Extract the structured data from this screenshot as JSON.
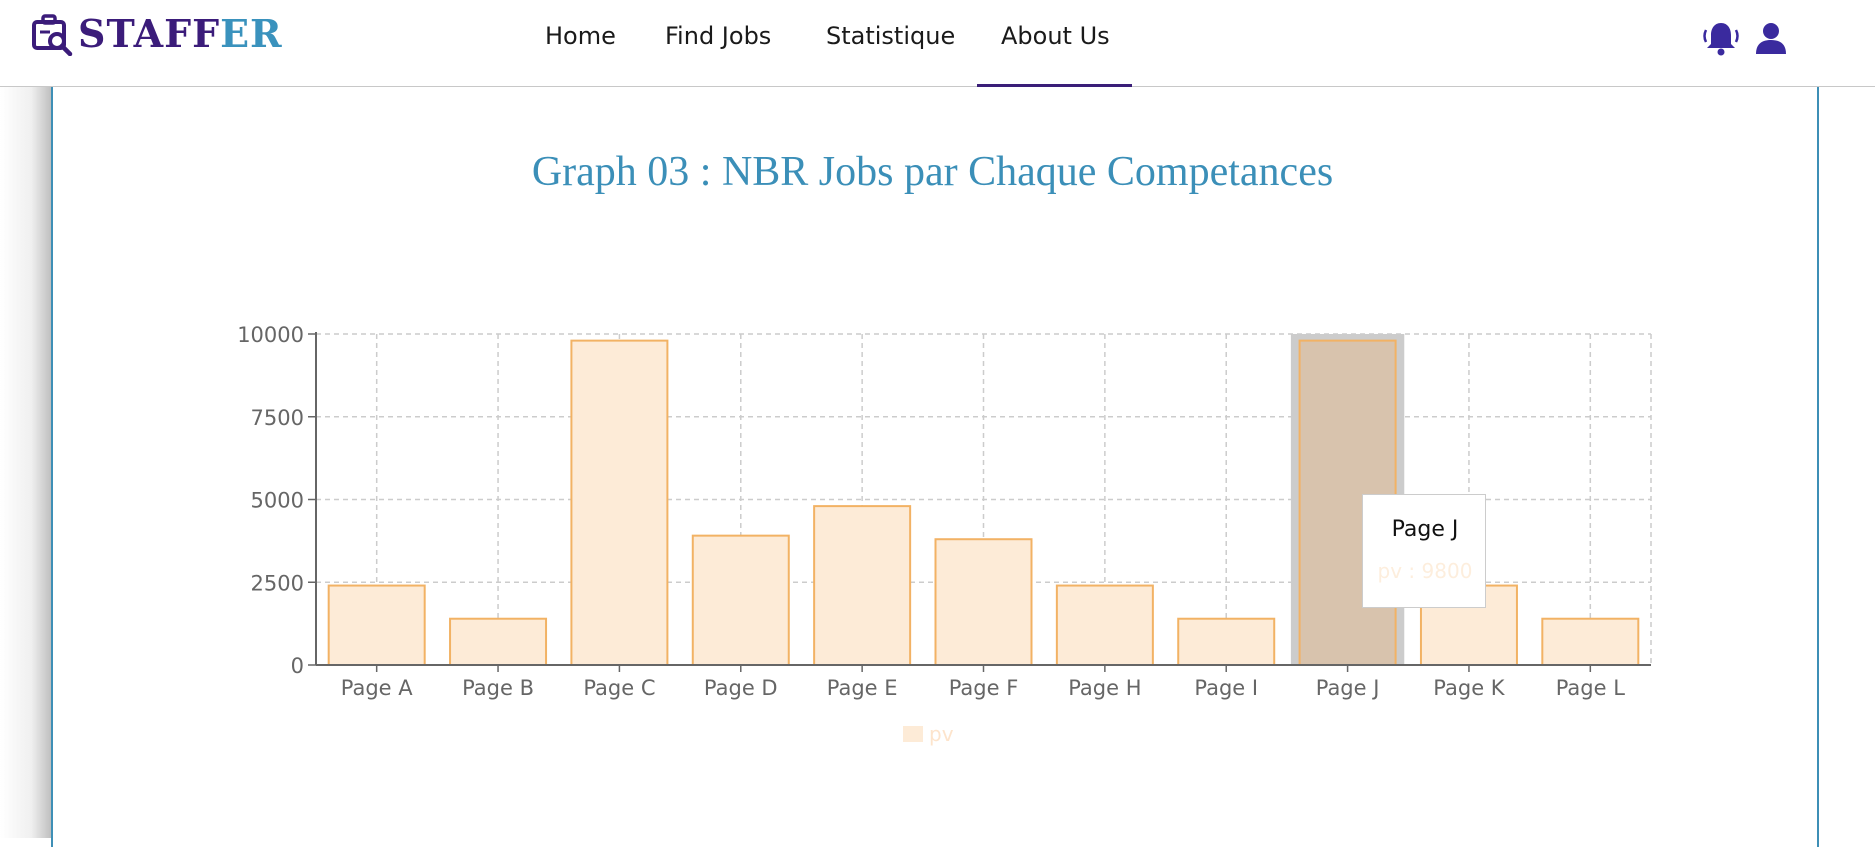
{
  "header": {
    "brand_part1": "STAFF",
    "brand_part2": "ER",
    "nav": [
      "Home",
      "Find Jobs",
      "Statistique",
      "About Us"
    ],
    "active_nav": "About Us",
    "icons": [
      "bell-icon",
      "user-icon"
    ],
    "brand_colors": {
      "primary": "#3b1c7a",
      "secondary": "#3a92bd"
    }
  },
  "graph": {
    "title": "Graph 03 : NBR Jobs par Chaque Competances"
  },
  "tooltip": {
    "label": "Page J",
    "value_text": "pv : 9800"
  },
  "legend": {
    "series_name": "pv"
  },
  "chart_data": {
    "type": "bar",
    "title": "Graph 03 : NBR Jobs par Chaque Competances",
    "xlabel": "",
    "ylabel": "",
    "categories": [
      "Page A",
      "Page B",
      "Page C",
      "Page D",
      "Page E",
      "Page F",
      "Page H",
      "Page I",
      "Page J",
      "Page K",
      "Page L"
    ],
    "series": [
      {
        "name": "pv",
        "values": [
          2400,
          1398,
          9800,
          3908,
          4800,
          3800,
          2400,
          1398,
          9800,
          2400,
          1398
        ]
      }
    ],
    "ylim": [
      0,
      10000
    ],
    "yticks": [
      0,
      2500,
      5000,
      7500,
      10000
    ],
    "grid": true,
    "legend_position": "bottom",
    "highlighted_category": "Page J",
    "colors": {
      "bar_fill": "#fdebd7",
      "bar_stroke": "#f2b264",
      "highlight_fill": "#d8c3ad",
      "cursor": "#cccccc"
    }
  }
}
